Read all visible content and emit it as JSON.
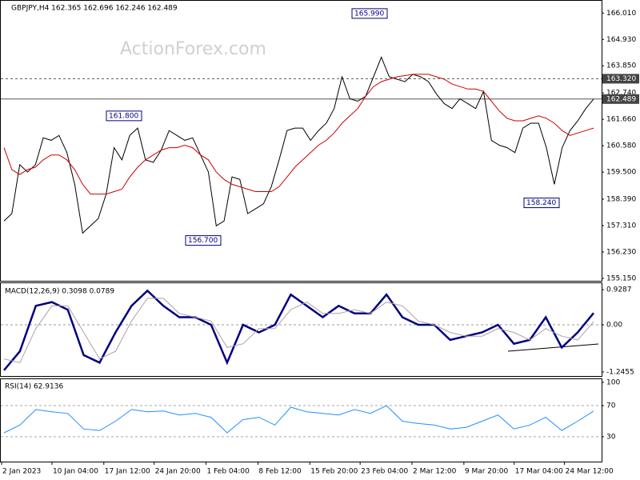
{
  "chart_data": [
    {
      "type": "line",
      "title": "GBPJPY,H4  162.365 162.696 162.246 162.489",
      "watermark": "ActionForex.com",
      "ylim": [
        155.05,
        166.51
      ],
      "yticks": [
        {
          "value": 166.01,
          "label": "166.010"
        },
        {
          "value": 164.93,
          "label": "164.930"
        },
        {
          "value": 163.85,
          "label": "163.850"
        },
        {
          "value": 162.74,
          "label": "162.740"
        },
        {
          "value": 161.66,
          "label": "161.660"
        },
        {
          "value": 160.58,
          "label": "160.580"
        },
        {
          "value": 159.5,
          "label": "159.500"
        },
        {
          "value": 158.39,
          "label": "158.390"
        },
        {
          "value": 157.31,
          "label": "157.310"
        },
        {
          "value": 156.23,
          "label": "156.230"
        },
        {
          "value": 155.15,
          "label": "155.150"
        }
      ],
      "xlim": [
        -0.5,
        75
      ],
      "xticks": [
        {
          "value": -0.3,
          "label": "2 Jan 2023"
        },
        {
          "value": 6.1,
          "label": "10 Jan 04:00"
        },
        {
          "value": 12.7,
          "label": "17 Jan 12:00"
        },
        {
          "value": 19.1,
          "label": "24 Jan 20:00"
        },
        {
          "value": 25.7,
          "label": "1 Feb 04:00"
        },
        {
          "value": 32.3,
          "label": "8 Feb 12:00"
        },
        {
          "value": 38.9,
          "label": "15 Feb 20:00"
        },
        {
          "value": 45.3,
          "label": "23 Feb 04:00"
        },
        {
          "value": 51.9,
          "label": "2 Mar 12:00"
        },
        {
          "value": 58.5,
          "label": "9 Mar 20:00"
        },
        {
          "value": 64.9,
          "label": "17 Mar 04:00"
        },
        {
          "value": 71.3,
          "label": "24 Mar 12:00"
        }
      ],
      "series": [
        {
          "name": "GBPJPY",
          "color": "#000000",
          "values": [
            157.5,
            157.8,
            159.8,
            159.5,
            159.8,
            160.9,
            160.8,
            161.0,
            160.3,
            159.0,
            157.0,
            157.3,
            157.6,
            158.6,
            160.5,
            160.0,
            161.0,
            161.3,
            160.0,
            159.9,
            160.4,
            161.2,
            161.0,
            160.8,
            160.9,
            160.2,
            159.5,
            157.3,
            157.5,
            159.3,
            159.2,
            157.8,
            158.0,
            158.2,
            158.9,
            160.0,
            161.2,
            161.3,
            161.3,
            160.8,
            161.2,
            161.5,
            162.1,
            163.4,
            162.5,
            162.4,
            162.6,
            163.4,
            164.2,
            163.4,
            163.3,
            163.2,
            163.5,
            163.4,
            163.2,
            162.7,
            162.3,
            162.1,
            162.5,
            162.3,
            162.1,
            162.8,
            160.8,
            160.6,
            160.5,
            160.3,
            161.3,
            161.5,
            161.5,
            160.5,
            159.0,
            160.5,
            161.2,
            161.6,
            162.1,
            162.489
          ]
        },
        {
          "name": "MA",
          "color": "#cc0000",
          "values": [
            160.5,
            159.6,
            159.4,
            159.6,
            159.7,
            160.0,
            160.2,
            160.2,
            160.0,
            159.6,
            159.0,
            158.6,
            158.6,
            158.6,
            158.7,
            158.8,
            159.3,
            159.7,
            160.0,
            160.2,
            160.4,
            160.5,
            160.5,
            160.6,
            160.5,
            160.2,
            160.0,
            159.5,
            159.2,
            159.0,
            158.9,
            158.8,
            158.7,
            158.7,
            158.7,
            158.9,
            159.3,
            159.7,
            160.0,
            160.3,
            160.6,
            160.8,
            161.1,
            161.5,
            161.8,
            162.1,
            162.6,
            163.0,
            163.2,
            163.3,
            163.4,
            163.45,
            163.5,
            163.5,
            163.5,
            163.4,
            163.3,
            163.1,
            163.0,
            162.9,
            162.9,
            162.8,
            162.4,
            162.0,
            161.7,
            161.6,
            161.6,
            161.7,
            161.8,
            161.7,
            161.5,
            161.2,
            161.0,
            161.1,
            161.2,
            161.3
          ]
        }
      ],
      "levels": [
        {
          "value": 163.32,
          "label": "163.320",
          "style": "dashed"
        },
        {
          "value": 162.489,
          "label": "162.489",
          "style": "solid"
        }
      ],
      "annotations": [
        {
          "value": 165.99,
          "label": "165.990"
        },
        {
          "value": 161.8,
          "label": "161.800"
        },
        {
          "value": 156.7,
          "label": "156.700"
        },
        {
          "value": 158.24,
          "label": "158.240"
        }
      ]
    },
    {
      "type": "line",
      "title": "MACD(12,26,9) 0.3098 0.0789",
      "ylim": [
        -1.352,
        1.099
      ],
      "yticks": [
        0.9287,
        {
          "value": 0,
          "label": "0.00"
        },
        -1.2455
      ],
      "zero_line": true,
      "series": [
        {
          "name": "MACD",
          "color": "#000080",
          "values": [
            -1.2,
            -0.7,
            0.5,
            0.6,
            0.4,
            -0.8,
            -1.0,
            -0.2,
            0.5,
            0.9,
            0.5,
            0.2,
            0.2,
            0.0,
            -1.0,
            0.0,
            -0.2,
            0.0,
            0.8,
            0.5,
            0.2,
            0.5,
            0.3,
            0.3,
            0.8,
            0.2,
            0.0,
            0.0,
            -0.4,
            -0.3,
            -0.2,
            0.0,
            -0.5,
            -0.4,
            0.2,
            -0.6,
            -0.2,
            0.31
          ]
        },
        {
          "name": "Signal",
          "color": "#b0a0a0",
          "values": [
            -0.9,
            -1.0,
            -0.1,
            0.5,
            0.5,
            -0.2,
            -0.9,
            -0.7,
            0.1,
            0.7,
            0.7,
            0.3,
            0.2,
            0.1,
            -0.6,
            -0.5,
            -0.1,
            -0.1,
            0.4,
            0.6,
            0.3,
            0.3,
            0.4,
            0.3,
            0.6,
            0.5,
            0.1,
            0.0,
            -0.2,
            -0.3,
            -0.3,
            -0.1,
            -0.2,
            -0.4,
            -0.1,
            -0.3,
            -0.4,
            0.08
          ]
        }
      ]
    },
    {
      "type": "line",
      "title": "RSI(14) 62.9136",
      "ylim": [
        -2,
        104
      ],
      "yticks": [
        100,
        70,
        30
      ],
      "levels": [
        {
          "value": 70,
          "style": "dashed"
        },
        {
          "value": 30,
          "style": "dashed"
        }
      ],
      "series": [
        {
          "name": "RSI",
          "color": "#1e90ff",
          "values": [
            35,
            45,
            65,
            62,
            60,
            40,
            38,
            50,
            65,
            62,
            63,
            58,
            60,
            55,
            35,
            52,
            55,
            45,
            68,
            62,
            60,
            58,
            65,
            60,
            70,
            50,
            47,
            45,
            40,
            42,
            50,
            58,
            40,
            45,
            55,
            38,
            50,
            63
          ]
        }
      ]
    }
  ]
}
